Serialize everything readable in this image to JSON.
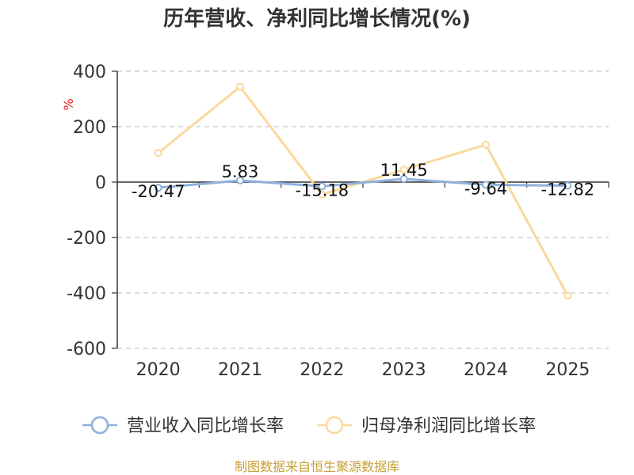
{
  "chart_data": {
    "type": "line",
    "title": "历年营收、净利同比增长情况(%)",
    "ylabel": "%",
    "categories": [
      "2020",
      "2021",
      "2022",
      "2023",
      "2024",
      "2025"
    ],
    "yticks": [
      400,
      200,
      0,
      -200,
      -400,
      -600
    ],
    "ylim": [
      -600,
      400
    ],
    "grid": true,
    "legend_position": "bottom",
    "series": [
      {
        "name": "营业收入同比增长率",
        "color": "#8fb0dc",
        "values": [
          -20.47,
          5.83,
          -15.18,
          11.45,
          -9.64,
          -12.82
        ],
        "labels": [
          "-20.47",
          "5.83",
          "-15.18",
          "11.45",
          "-9.64",
          "-12.82"
        ]
      },
      {
        "name": "归母净利润同比增长率",
        "color": "#fad89c",
        "values": [
          105,
          344,
          -45,
          45,
          135,
          -410
        ]
      }
    ]
  },
  "source": "制图数据来自恒生聚源数据库"
}
